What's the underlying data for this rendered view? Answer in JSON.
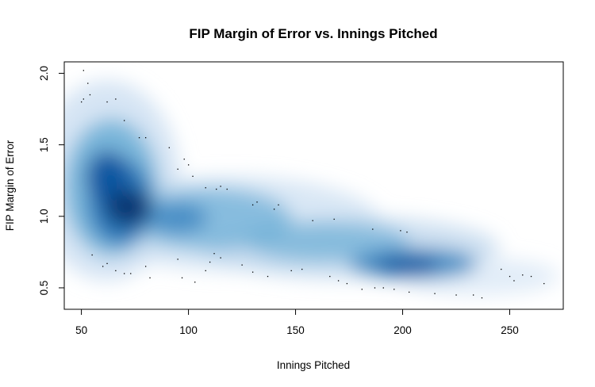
{
  "chart_data": {
    "type": "heatmap",
    "subtype": "smoothed-density-scatter",
    "title": "FIP Margin of Error vs. Innings Pitched",
    "xlabel": "Innings Pitched",
    "ylabel": "FIP Margin of Error",
    "xlim": [
      42,
      275
    ],
    "ylim": [
      0.35,
      2.08
    ],
    "xticks": [
      50,
      100,
      150,
      200,
      250
    ],
    "yticks": [
      0.5,
      1.0,
      1.5,
      2.0
    ],
    "xtick_labels": [
      "50",
      "100",
      "150",
      "200",
      "250"
    ],
    "ytick_labels": [
      "0.5",
      "1.0",
      "1.5",
      "2.0"
    ],
    "grid": false,
    "color_low": "#ffffff",
    "color_high": "#08306b",
    "density_core": [
      {
        "x": 70,
        "y": 1.07,
        "weight": 1.0
      },
      {
        "x": 62,
        "y": 1.25,
        "weight": 0.8
      },
      {
        "x": 200,
        "y": 0.66,
        "weight": 0.75
      }
    ],
    "outlier_points": [
      {
        "x": 51,
        "y": 2.02
      },
      {
        "x": 53,
        "y": 1.93
      },
      {
        "x": 51,
        "y": 1.82
      },
      {
        "x": 54,
        "y": 1.85
      },
      {
        "x": 50,
        "y": 1.8
      },
      {
        "x": 62,
        "y": 1.8
      },
      {
        "x": 66,
        "y": 1.82
      },
      {
        "x": 70,
        "y": 1.67
      },
      {
        "x": 77,
        "y": 1.55
      },
      {
        "x": 80,
        "y": 1.55
      },
      {
        "x": 91,
        "y": 1.48
      },
      {
        "x": 95,
        "y": 1.33
      },
      {
        "x": 98,
        "y": 1.4
      },
      {
        "x": 100,
        "y": 1.36
      },
      {
        "x": 102,
        "y": 1.28
      },
      {
        "x": 108,
        "y": 1.2
      },
      {
        "x": 113,
        "y": 1.19
      },
      {
        "x": 115,
        "y": 1.21
      },
      {
        "x": 118,
        "y": 1.19
      },
      {
        "x": 130,
        "y": 1.08
      },
      {
        "x": 132,
        "y": 1.1
      },
      {
        "x": 140,
        "y": 1.05
      },
      {
        "x": 142,
        "y": 1.08
      },
      {
        "x": 158,
        "y": 0.97
      },
      {
        "x": 168,
        "y": 0.98
      },
      {
        "x": 186,
        "y": 0.91
      },
      {
        "x": 199,
        "y": 0.9
      },
      {
        "x": 202,
        "y": 0.89
      },
      {
        "x": 55,
        "y": 0.73
      },
      {
        "x": 60,
        "y": 0.65
      },
      {
        "x": 62,
        "y": 0.67
      },
      {
        "x": 66,
        "y": 0.62
      },
      {
        "x": 70,
        "y": 0.6
      },
      {
        "x": 73,
        "y": 0.6
      },
      {
        "x": 80,
        "y": 0.65
      },
      {
        "x": 82,
        "y": 0.57
      },
      {
        "x": 95,
        "y": 0.7
      },
      {
        "x": 97,
        "y": 0.57
      },
      {
        "x": 103,
        "y": 0.54
      },
      {
        "x": 108,
        "y": 0.62
      },
      {
        "x": 110,
        "y": 0.68
      },
      {
        "x": 112,
        "y": 0.74
      },
      {
        "x": 115,
        "y": 0.71
      },
      {
        "x": 125,
        "y": 0.66
      },
      {
        "x": 130,
        "y": 0.61
      },
      {
        "x": 137,
        "y": 0.58
      },
      {
        "x": 148,
        "y": 0.62
      },
      {
        "x": 153,
        "y": 0.63
      },
      {
        "x": 166,
        "y": 0.58
      },
      {
        "x": 170,
        "y": 0.55
      },
      {
        "x": 174,
        "y": 0.53
      },
      {
        "x": 181,
        "y": 0.49
      },
      {
        "x": 187,
        "y": 0.5
      },
      {
        "x": 191,
        "y": 0.5
      },
      {
        "x": 196,
        "y": 0.49
      },
      {
        "x": 203,
        "y": 0.47
      },
      {
        "x": 215,
        "y": 0.46
      },
      {
        "x": 225,
        "y": 0.45
      },
      {
        "x": 233,
        "y": 0.45
      },
      {
        "x": 237,
        "y": 0.43
      },
      {
        "x": 246,
        "y": 0.63
      },
      {
        "x": 250,
        "y": 0.58
      },
      {
        "x": 252,
        "y": 0.55
      },
      {
        "x": 256,
        "y": 0.59
      },
      {
        "x": 260,
        "y": 0.58
      },
      {
        "x": 266,
        "y": 0.53
      }
    ]
  }
}
